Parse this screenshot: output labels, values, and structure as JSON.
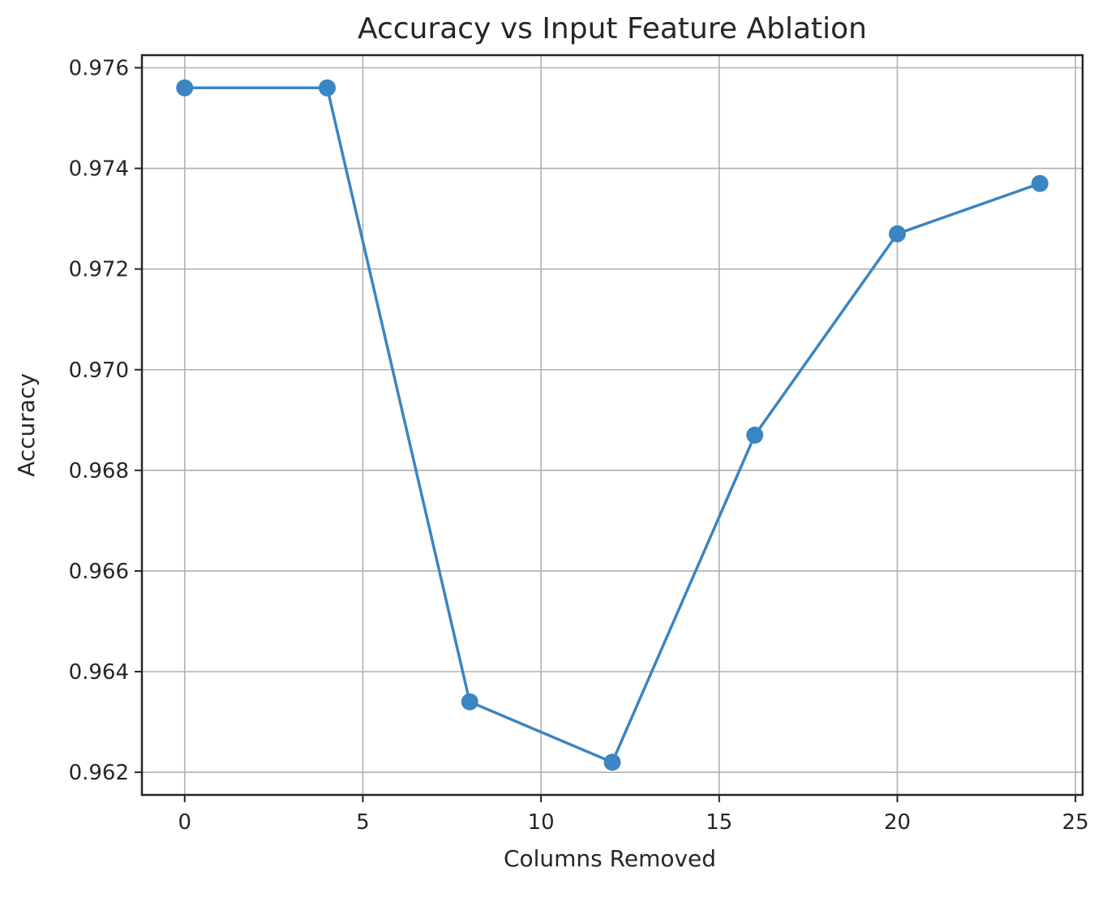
{
  "chart_data": {
    "type": "line",
    "title": "Accuracy vs Input Feature Ablation",
    "xlabel": "Columns Removed",
    "ylabel": "Accuracy",
    "x": [
      0,
      4,
      8,
      12,
      16,
      20,
      24
    ],
    "series": [
      {
        "values": [
          0.9756,
          0.9756,
          0.9634,
          0.9622,
          0.9687,
          0.9727,
          0.9737
        ]
      }
    ],
    "xlim": [
      -1.2,
      25.2
    ],
    "ylim": [
      0.96155,
      0.97625
    ],
    "xticks": [
      "0",
      "5",
      "10",
      "15",
      "20",
      "25"
    ],
    "yticks": [
      "0.962",
      "0.964",
      "0.966",
      "0.968",
      "0.970",
      "0.972",
      "0.974",
      "0.976"
    ],
    "grid": true,
    "marker": "circle",
    "line_color": "#3a85c2"
  }
}
